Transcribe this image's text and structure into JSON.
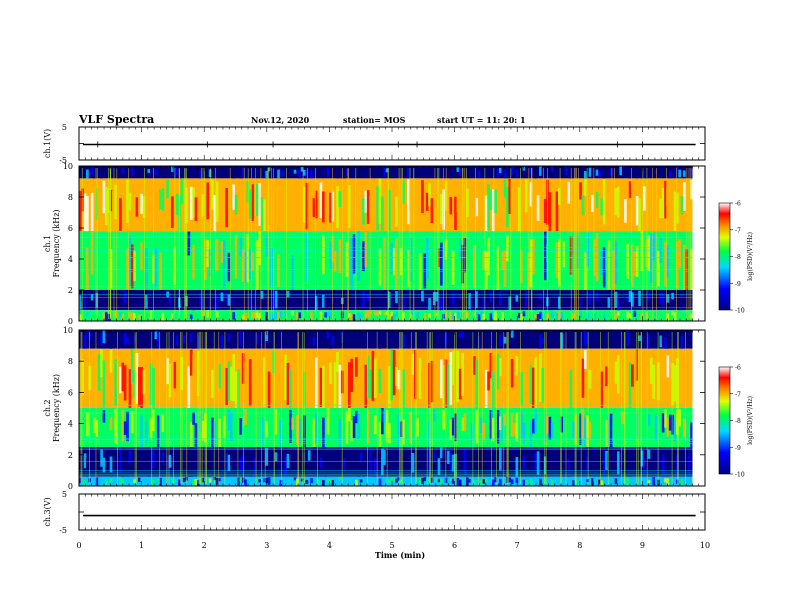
{
  "header": {
    "title": "VLF Spectra",
    "date": "Nov.12, 2020",
    "station": "station= MOS",
    "start_ut": "start  UT =   11: 20: 1"
  },
  "chart_data": [
    {
      "type": "line",
      "panel": "ch1-waveform",
      "ylabel": "ch.1(V)",
      "yticks": [
        "5",
        "-5"
      ],
      "ylim": [
        -5,
        5
      ],
      "x": [
        0,
        10
      ],
      "values": [
        -0.3,
        -0.3
      ],
      "note_spikes_at_min": [
        0.3,
        2.05,
        3.1,
        5.1,
        5.4,
        6.8,
        8.6,
        9.0
      ]
    },
    {
      "type": "heatmap",
      "panel": "ch1-spectrogram",
      "ylabel_line1": "ch.1",
      "ylabel_line2": "Frequency  (kHz)",
      "yticks": [
        "0",
        "2",
        "4",
        "6",
        "8",
        "10"
      ],
      "ylim": [
        0,
        10
      ],
      "xlim": [
        0,
        9.8
      ],
      "colorbar": {
        "label": "log(PSD)(V²/Hz)",
        "ticks": [
          "-6",
          "-7",
          "-8",
          "-9",
          "-10"
        ],
        "range": [
          -10,
          -6
        ]
      },
      "bands_khz": [
        {
          "from": 9.2,
          "to": 10.0,
          "level": -9.8
        },
        {
          "from": 5.8,
          "to": 9.2,
          "level": -7.2
        },
        {
          "from": 2.0,
          "to": 5.8,
          "level": -8.0
        },
        {
          "from": 0.7,
          "to": 2.0,
          "level": -9.7
        },
        {
          "from": 0.0,
          "to": 0.7,
          "level": -8.2
        }
      ]
    },
    {
      "type": "heatmap",
      "panel": "ch2-spectrogram",
      "ylabel_line1": "ch.2",
      "ylabel_line2": "Frequency  (kHz)",
      "yticks": [
        "0",
        "2",
        "4",
        "6",
        "8",
        "10"
      ],
      "ylim": [
        0,
        10
      ],
      "xlim": [
        0,
        9.8
      ],
      "colorbar": {
        "label": "log(PSD)(V²/Hz)",
        "ticks": [
          "-6",
          "-7",
          "-8",
          "-9",
          "-10"
        ],
        "range": [
          -10,
          -6
        ]
      },
      "bands_khz": [
        {
          "from": 8.8,
          "to": 10.0,
          "level": -9.9
        },
        {
          "from": 5.0,
          "to": 8.8,
          "level": -7.3
        },
        {
          "from": 2.5,
          "to": 5.0,
          "level": -8.3
        },
        {
          "from": 0.6,
          "to": 2.5,
          "level": -9.8
        },
        {
          "from": 0.0,
          "to": 0.6,
          "level": -8.8
        }
      ]
    },
    {
      "type": "line",
      "panel": "ch3-waveform",
      "ylabel": "ch.3(V)",
      "yticks": [
        "5",
        "-5"
      ],
      "ylim": [
        -5,
        5
      ],
      "x": [
        0,
        10
      ],
      "values": [
        -1,
        -1
      ]
    }
  ],
  "xaxis": {
    "label": "Time  (min)",
    "ticks": [
      "0",
      "1",
      "2",
      "3",
      "4",
      "5",
      "6",
      "7",
      "8",
      "9",
      "10"
    ],
    "xlim": [
      0,
      10
    ]
  },
  "colors": {
    "colormap": [
      "#00007a",
      "#0000ff",
      "#00c8ff",
      "#00ff60",
      "#c8ff00",
      "#ffb000",
      "#ff0000",
      "#ffffff"
    ]
  }
}
